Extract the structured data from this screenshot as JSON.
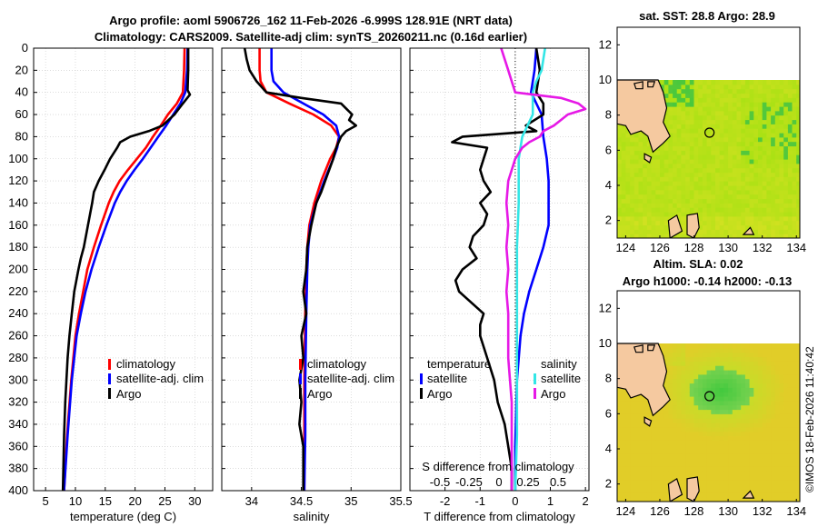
{
  "figure": {
    "title_line1": "Argo profile: aoml 5906726_162 11-Feb-2026 -6.999S 128.91E (NRT data)",
    "title_line2": "Climatology: CARS2009. Satellite-adj clim: synTS_20260211.nc (0.16d earlier)",
    "watermark": "©IMOS 18-Feb-2026 11:40:42"
  },
  "colors": {
    "climatology": "#ff0000",
    "satellite": "#0000ff",
    "argo": "#000000",
    "satellite_salinity": "#33e6e6",
    "argo_salinity": "#e619e6",
    "land": "#f5c9a0",
    "grid": "#c8c8c8"
  },
  "chart_data": [
    {
      "id": "temperature",
      "type": "line",
      "xlabel": "temperature (deg C)",
      "xlim": [
        3,
        33
      ],
      "xticks": [
        5,
        10,
        15,
        20,
        25,
        30
      ],
      "ylim": [
        0,
        400
      ],
      "yticks": [
        0,
        20,
        40,
        60,
        80,
        100,
        120,
        140,
        160,
        180,
        200,
        220,
        240,
        260,
        280,
        300,
        320,
        340,
        360,
        380,
        400
      ],
      "legend": [
        "climatology",
        "satellite-adj. clim",
        "Argo"
      ],
      "series": [
        {
          "name": "climatology",
          "color": "#ff0000",
          "depth": [
            0,
            20,
            40,
            50,
            60,
            70,
            80,
            90,
            100,
            110,
            120,
            130,
            140,
            160,
            180,
            200,
            220,
            240,
            260,
            300,
            350,
            400
          ],
          "values": [
            28.3,
            28.2,
            28.0,
            27.0,
            25.5,
            24.3,
            23.0,
            21.8,
            20.3,
            18.8,
            17.4,
            16.4,
            15.6,
            14.3,
            13.1,
            12.0,
            11.3,
            10.6,
            10.0,
            9.3,
            8.6,
            8.1
          ]
        },
        {
          "name": "satellite-adj. clim",
          "color": "#0000ff",
          "depth": [
            0,
            20,
            40,
            50,
            60,
            70,
            80,
            90,
            100,
            110,
            120,
            130,
            140,
            160,
            180,
            200,
            220,
            240,
            260,
            300,
            350,
            400
          ],
          "values": [
            28.8,
            28.7,
            28.4,
            27.6,
            26.4,
            25.2,
            23.9,
            22.6,
            21.3,
            19.9,
            18.6,
            17.5,
            16.6,
            15.2,
            13.9,
            12.7,
            11.7,
            10.9,
            10.2,
            9.4,
            8.7,
            8.1
          ]
        },
        {
          "name": "Argo",
          "color": "#000000",
          "depth": [
            0,
            20,
            38,
            42,
            50,
            60,
            70,
            75,
            80,
            85,
            90,
            100,
            110,
            120,
            130,
            140,
            160,
            180,
            190,
            200,
            220,
            240,
            250,
            260,
            280,
            300,
            320,
            350,
            400
          ],
          "values": [
            28.9,
            28.9,
            28.8,
            29.2,
            28.0,
            26.6,
            24.6,
            22.3,
            19.2,
            17.5,
            17.0,
            15.8,
            14.9,
            13.9,
            13.1,
            12.8,
            12.1,
            11.4,
            10.9,
            10.5,
            9.8,
            9.4,
            9.2,
            9.0,
            8.7,
            8.5,
            8.3,
            8.1,
            7.9
          ]
        }
      ]
    },
    {
      "id": "salinity",
      "type": "line",
      "xlabel": "salinity",
      "xlim": [
        33.7,
        35.5
      ],
      "xticks": [
        34,
        34.5,
        35,
        35.5
      ],
      "ylim": [
        0,
        400
      ],
      "yticks": [
        0,
        20,
        40,
        60,
        80,
        100,
        120,
        140,
        160,
        180,
        200,
        220,
        240,
        260,
        280,
        300,
        320,
        340,
        360,
        380,
        400
      ],
      "legend": [
        "climatology",
        "satellite-adj. clim",
        "Argo"
      ],
      "series": [
        {
          "name": "climatology",
          "color": "#ff0000",
          "depth": [
            0,
            20,
            30,
            40,
            50,
            60,
            70,
            80,
            90,
            100,
            120,
            140,
            160,
            180,
            200,
            240,
            300,
            350,
            400
          ],
          "values": [
            34.08,
            34.08,
            34.09,
            34.15,
            34.38,
            34.62,
            34.8,
            34.88,
            34.85,
            34.79,
            34.7,
            34.63,
            34.58,
            34.56,
            34.55,
            34.54,
            34.53,
            34.53,
            34.53
          ]
        },
        {
          "name": "satellite-adj. clim",
          "color": "#0000ff",
          "depth": [
            0,
            20,
            30,
            40,
            50,
            60,
            70,
            80,
            90,
            100,
            120,
            140,
            160,
            180,
            200,
            240,
            300,
            350,
            400
          ],
          "values": [
            34.2,
            34.2,
            34.22,
            34.32,
            34.52,
            34.72,
            34.85,
            34.88,
            34.86,
            34.82,
            34.73,
            34.65,
            34.59,
            34.57,
            34.56,
            34.55,
            34.54,
            34.54,
            34.53
          ]
        },
        {
          "name": "Argo",
          "color": "#000000",
          "depth": [
            0,
            10,
            20,
            30,
            40,
            45,
            50,
            60,
            65,
            70,
            75,
            80,
            90,
            100,
            110,
            120,
            130,
            140,
            160,
            180,
            200,
            220,
            240,
            260,
            280,
            300,
            320,
            340,
            360,
            400
          ],
          "values": [
            33.93,
            33.95,
            33.98,
            34.05,
            34.15,
            34.5,
            34.9,
            35.01,
            34.98,
            35.05,
            34.95,
            34.9,
            34.85,
            34.82,
            34.78,
            34.74,
            34.7,
            34.65,
            34.6,
            34.56,
            34.55,
            34.52,
            34.55,
            34.5,
            34.52,
            34.48,
            34.5,
            34.48,
            34.52,
            34.52
          ]
        }
      ]
    },
    {
      "id": "difference",
      "type": "line",
      "xlabel": "T difference from climatology",
      "secondary_xlabel": "S difference from climatology",
      "xlim": [
        -3,
        2.1
      ],
      "xticks": [
        -2,
        -1,
        0,
        1,
        2
      ],
      "secondary_xticks": [
        "-0.5",
        "-0.25",
        "0",
        "0.25",
        "0.5"
      ],
      "ylim": [
        0,
        400
      ],
      "yticks": [
        0,
        20,
        40,
        60,
        80,
        100,
        120,
        140,
        160,
        180,
        200,
        220,
        240,
        260,
        280,
        300,
        320,
        340,
        360,
        380,
        400
      ],
      "legend_headers": [
        "temperature",
        "salinity"
      ],
      "legend_temperature": [
        "satellite",
        "Argo"
      ],
      "legend_salinity": [
        "satellite",
        "Argo"
      ],
      "series": [
        {
          "name": "temperature satellite",
          "color": "#0000ff",
          "depth": [
            0,
            20,
            40,
            60,
            80,
            100,
            120,
            140,
            160,
            180,
            200,
            220,
            240,
            260,
            300,
            360,
            400
          ],
          "values": [
            0.6,
            0.55,
            0.45,
            0.75,
            0.8,
            0.9,
            0.95,
            0.95,
            0.95,
            0.8,
            0.6,
            0.4,
            0.25,
            0.15,
            0.05,
            0.0,
            0.0
          ]
        },
        {
          "name": "temperature Argo",
          "color": "#000000",
          "depth": [
            0,
            20,
            40,
            50,
            60,
            70,
            75,
            80,
            85,
            90,
            100,
            110,
            120,
            130,
            140,
            150,
            160,
            170,
            180,
            190,
            200,
            210,
            220,
            240,
            250,
            260,
            280,
            300,
            320,
            340,
            360,
            380,
            400
          ],
          "values": [
            0.6,
            0.7,
            0.6,
            0.8,
            0.8,
            0.3,
            0.6,
            -1.5,
            -1.8,
            -0.8,
            -0.9,
            -1.0,
            -0.9,
            -0.7,
            -1.0,
            -0.8,
            -0.9,
            -1.2,
            -1.3,
            -1.1,
            -1.5,
            -1.7,
            -1.6,
            -0.9,
            -1.0,
            -1.0,
            -0.8,
            -0.6,
            -0.5,
            -0.3,
            -0.2,
            -0.1,
            -0.1
          ]
        },
        {
          "name": "salinity satellite",
          "color": "#33e6e6",
          "depth": [
            0,
            10,
            20,
            30,
            40,
            60,
            80,
            100,
            140,
            180,
            220,
            260,
            300,
            350,
            400
          ],
          "values": [
            0.85,
            0.8,
            0.75,
            0.6,
            0.5,
            0.5,
            0.2,
            0.1,
            0.1,
            0.05,
            0.05,
            0.05,
            0.05,
            0.05,
            0.0
          ]
        },
        {
          "name": "salinity Argo",
          "color": "#e619e6",
          "depth": [
            0,
            10,
            20,
            30,
            40,
            45,
            50,
            55,
            60,
            65,
            70,
            75,
            80,
            85,
            90,
            100,
            120,
            140,
            160,
            180,
            200,
            220,
            240,
            260,
            280,
            300,
            320,
            350,
            400
          ],
          "values": [
            -0.4,
            -0.3,
            -0.2,
            -0.1,
            0.0,
            1.3,
            1.8,
            2.0,
            1.5,
            1.3,
            1.1,
            0.8,
            0.7,
            0.4,
            0.2,
            0.0,
            -0.2,
            -0.25,
            -0.2,
            -0.25,
            -0.2,
            -0.25,
            -0.2,
            -0.2,
            -0.2,
            -0.15,
            -0.1,
            -0.1,
            -0.1
          ]
        }
      ]
    },
    {
      "id": "sst_map",
      "type": "heatmap",
      "title": "sat. SST: 28.8 Argo: 28.9",
      "xlim": [
        123.5,
        134.2
      ],
      "ylim": [
        1,
        13
      ],
      "xticks": [
        124,
        126,
        128,
        130,
        132,
        134
      ],
      "yticks": [
        2,
        4,
        6,
        8,
        10,
        12
      ],
      "data_top": 10,
      "marker": {
        "lon": 128.91,
        "lat": 7.0
      }
    },
    {
      "id": "sla_map",
      "type": "heatmap",
      "title_line1": "Altim. SLA: 0.02",
      "title_line2": "Argo h1000: -0.14 h2000: -0.13",
      "xlim": [
        123.5,
        134.2
      ],
      "ylim": [
        1,
        13
      ],
      "xticks": [
        124,
        126,
        128,
        130,
        132,
        134
      ],
      "yticks": [
        2,
        4,
        6,
        8,
        10,
        12
      ],
      "data_top": 10,
      "marker": {
        "lon": 128.91,
        "lat": 7.0
      }
    }
  ]
}
